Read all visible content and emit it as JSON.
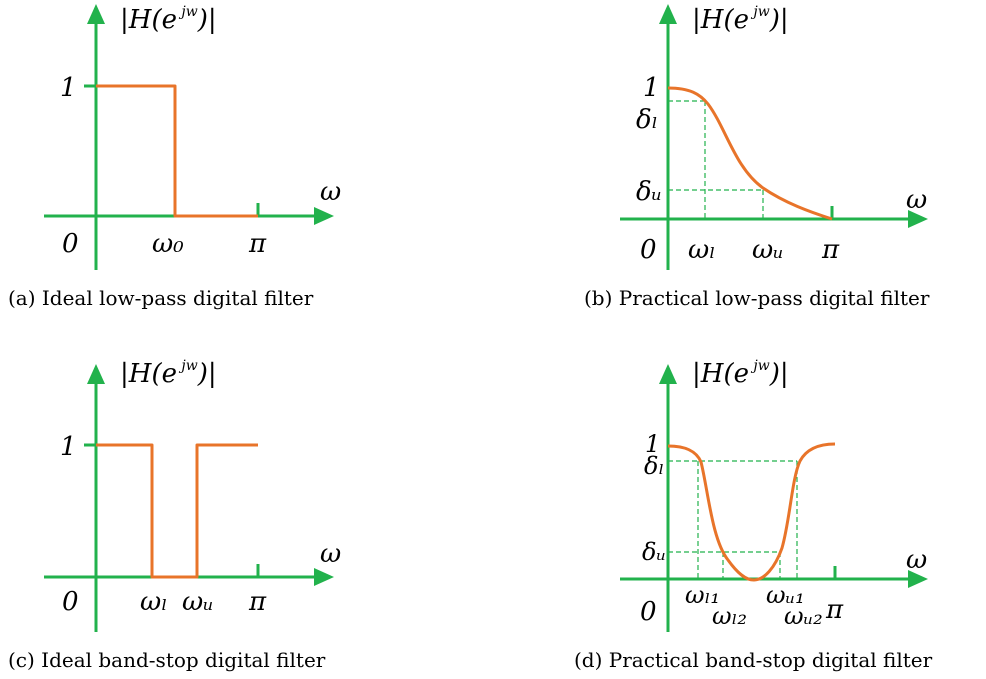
{
  "panels": [
    {
      "id": "a",
      "caption": "(a) Ideal low-pass digital filter",
      "y_axis_label": "|H(e jw)|",
      "labels": {
        "one": "1",
        "origin": "0",
        "omega": "ω",
        "omega0": "ω₀",
        "pi": "π"
      }
    },
    {
      "id": "b",
      "caption": "(b) Practical low-pass digital filter",
      "y_axis_label": "|H(e jw)|",
      "labels": {
        "one": "1",
        "origin": "0",
        "omega": "ω",
        "delta_l": "δₗ",
        "delta_u": "δᵤ",
        "omega_l": "ωₗ",
        "omega_u": "ωᵤ",
        "pi": "π"
      }
    },
    {
      "id": "c",
      "caption": "(c) Ideal band-stop digital filter",
      "y_axis_label": "|H(e jw)|",
      "labels": {
        "one": "1",
        "origin": "0",
        "omega": "ω",
        "omega_l": "ωₗ",
        "omega_u": "ωᵤ",
        "pi": "π"
      }
    },
    {
      "id": "d",
      "caption": "(d) Practical band-stop digital filter",
      "y_axis_label": "|H(e jw)|",
      "labels": {
        "one": "1",
        "origin": "0",
        "omega": "ω",
        "delta_l": "δₗ",
        "delta_u": "δᵤ",
        "omega_l1": "ωₗ₁",
        "omega_l2": "ωₗ₂",
        "omega_u1": "ωᵤ₁",
        "omega_u2": "ωᵤ₂",
        "pi": "π"
      }
    }
  ],
  "colors": {
    "axis": "#22b24c",
    "curve": "#e8742a",
    "text": "#000000"
  }
}
